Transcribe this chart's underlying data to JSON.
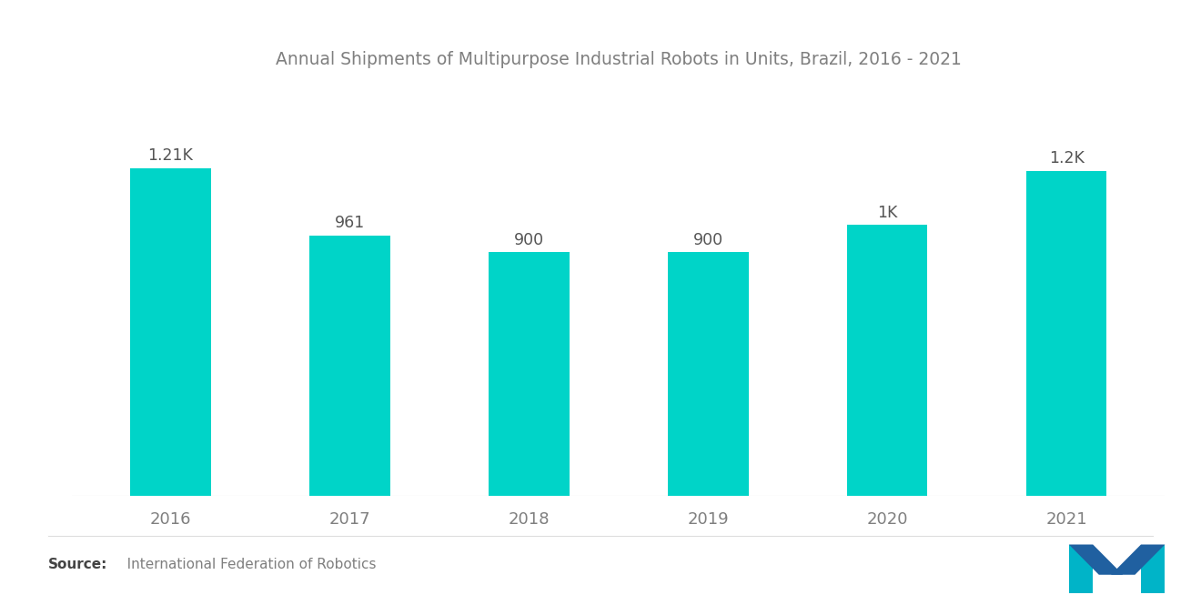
{
  "title": "Annual Shipments of Multipurpose Industrial Robots in Units, Brazil, 2016 - 2021",
  "categories": [
    "2016",
    "2017",
    "2018",
    "2019",
    "2020",
    "2021"
  ],
  "values": [
    1210,
    961,
    900,
    900,
    1000,
    1200
  ],
  "labels": [
    "1.21K",
    "961",
    "900",
    "900",
    "1K",
    "1.2K"
  ],
  "bar_color": "#00D4C8",
  "background_color": "#ffffff",
  "title_color": "#7f7f7f",
  "label_color": "#555555",
  "tick_color": "#7f7f7f",
  "source_bold": "Source:",
  "source_detail": "   International Federation of Robotics",
  "ylim": [
    0,
    1450
  ],
  "title_fontsize": 13.5,
  "label_fontsize": 12.5,
  "tick_fontsize": 13,
  "source_fontsize": 11,
  "bar_width": 0.45
}
